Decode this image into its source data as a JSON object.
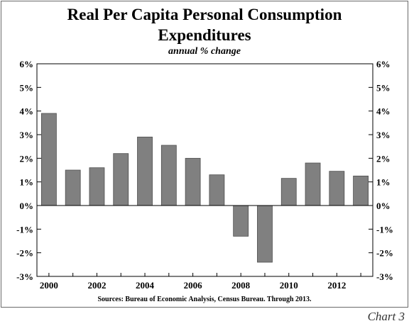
{
  "chart_data": {
    "type": "bar",
    "title_lines": [
      "Real Per Capita Personal Consumption",
      "Expenditures"
    ],
    "subtitle": "annual % change",
    "categories": [
      "2000",
      "2001",
      "2002",
      "2003",
      "2004",
      "2005",
      "2006",
      "2007",
      "2008",
      "2009",
      "2010",
      "2011",
      "2012",
      "2013"
    ],
    "values": [
      3.9,
      1.5,
      1.6,
      2.2,
      2.9,
      2.55,
      2.0,
      1.3,
      -1.3,
      -2.4,
      1.15,
      1.8,
      1.45,
      1.25
    ],
    "x_tick_labels": [
      "2000",
      "2002",
      "2004",
      "2006",
      "2008",
      "2010",
      "2012"
    ],
    "y_tick_labels": [
      "-3%",
      "-2%",
      "-1%",
      "0%",
      "1%",
      "2%",
      "3%",
      "4%",
      "5%",
      "6%"
    ],
    "ylim": [
      -3,
      6
    ],
    "xlabel": "",
    "ylabel": "",
    "legend": "none",
    "grid": false,
    "bar_color": "#808080",
    "source": "Sources:  Bureau of Economic Analysis, Census Bureau. Through 2013.",
    "label": "Chart 3"
  }
}
